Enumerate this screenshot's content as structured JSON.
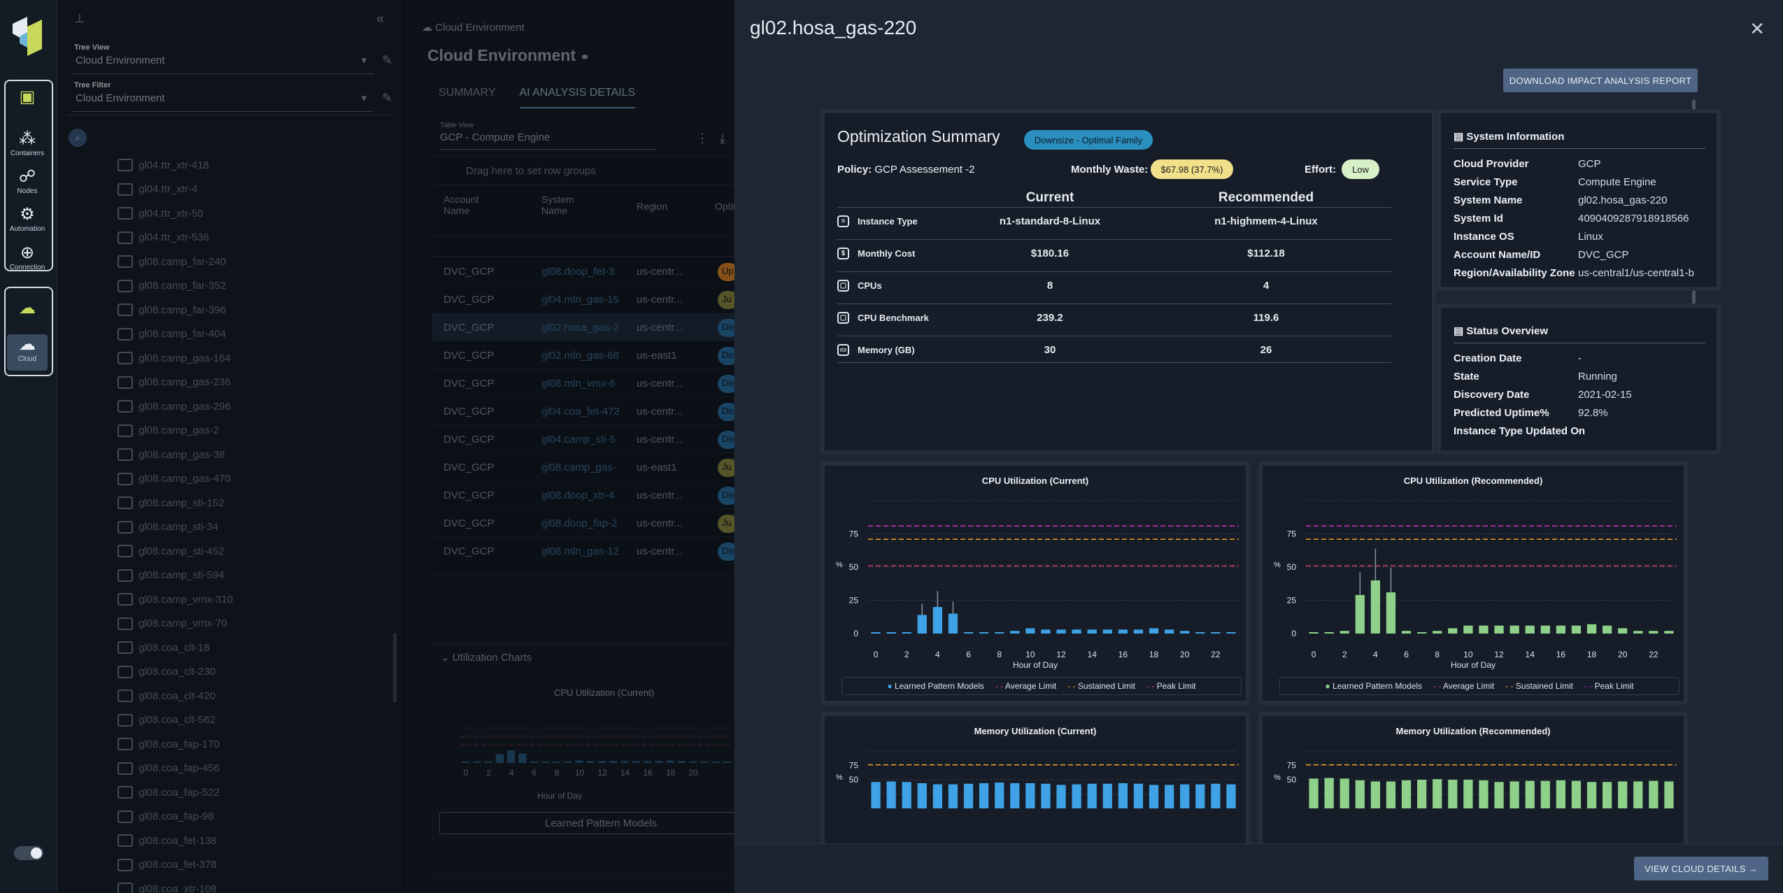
{
  "rail": {
    "items": [
      "Containers",
      "Nodes",
      "Automation",
      "Connection",
      "Cloud"
    ]
  },
  "tree": {
    "tree_view_label": "Tree View",
    "tree_view_value": "Cloud Environment",
    "tree_filter_label": "Tree Filter",
    "tree_filter_value": "Cloud Environment",
    "items": [
      "gl04.ttr_xtr-418",
      "gl04.ttr_xtr-4",
      "gl04.ttr_xtr-50",
      "gl04.ttr_xtr-536",
      "gl08.camp_far-240",
      "gl08.camp_far-352",
      "gl08.camp_far-396",
      "gl08.camp_far-404",
      "gl08.camp_gas-164",
      "gl08.camp_gas-236",
      "gl08.camp_gas-296",
      "gl08.camp_gas-2",
      "gl08.camp_gas-38",
      "gl08.camp_gas-470",
      "gl08.camp_sti-152",
      "gl08.camp_sti-34",
      "gl08.camp_sti-452",
      "gl08.camp_sti-594",
      "gl08.camp_vmx-310",
      "gl08.camp_vmx-70",
      "gl08.coa_clt-18",
      "gl08.coa_clt-230",
      "gl08.coa_clt-420",
      "gl08.coa_clt-562",
      "gl08.coa_fap-170",
      "gl08.coa_fap-456",
      "gl08.coa_fap-522",
      "gl08.coa_fap-98",
      "gl08.coa_fet-138",
      "gl08.coa_fet-378",
      "gl08.coa_xtr-108"
    ]
  },
  "mid": {
    "breadcrumb": "Cloud Environment",
    "title": "Cloud Environment",
    "tabs": [
      "SUMMARY",
      "AI ANALYSIS DETAILS"
    ],
    "table_view_label": "Table View",
    "table_view_value": "GCP - Compute Engine",
    "group_hint": "Drag here to set row groups",
    "columns": [
      "Account Name",
      "System Name",
      "Region",
      "Optin"
    ],
    "rows": [
      [
        "DVC_GCP",
        "gl08.doop_fet-3",
        "us-centr...",
        "Up"
      ],
      [
        "DVC_GCP",
        "gl04.mln_gas-15",
        "us-centr...",
        "Ju"
      ],
      [
        "DVC_GCP",
        "gl02.hosa_gas-2",
        "us-centr...",
        "Do"
      ],
      [
        "DVC_GCP",
        "gl02.mln_gas-66",
        "us-east1",
        "Do"
      ],
      [
        "DVC_GCP",
        "gl08.mln_vmx-6",
        "us-centr...",
        "Do"
      ],
      [
        "DVC_GCP",
        "gl04.coa_fet-472",
        "us-centr...",
        "Do"
      ],
      [
        "DVC_GCP",
        "gl04.camp_sti-5",
        "us-centr...",
        "Do"
      ],
      [
        "DVC_GCP",
        "gl08.camp_gas-",
        "us-east1",
        "Ju"
      ],
      [
        "DVC_GCP",
        "gl08.doop_xtr-4",
        "us-centr...",
        "Do"
      ],
      [
        "DVC_GCP",
        "gl08.doop_fap-2",
        "us-centr...",
        "Ju"
      ],
      [
        "DVC_GCP",
        "gl08.mln_gas-12",
        "us-centr...",
        "Do"
      ]
    ],
    "util_title": "Utilization Charts",
    "mini_chart_title": "CPU Utilization (Current)",
    "mini_xlabel": "Hour of Day",
    "mini_legend": "Learned Pattern Models"
  },
  "panel": {
    "title": "gl02.hosa_gas-220",
    "download_btn": "DOWNLOAD IMPACT ANALYSIS REPORT",
    "view_btn": "VIEW CLOUD DETAILS",
    "summary": {
      "title": "Optimization Summary",
      "badge": "Downsize - Optimal Family",
      "policy_label": "Policy:",
      "policy": "GCP Assessement -2",
      "waste_label": "Monthly Waste:",
      "waste": "$67.98 (37.7%)",
      "effort_label": "Effort:",
      "effort": "Low",
      "col_current": "Current",
      "col_recommended": "Recommended",
      "rows": [
        {
          "label": "Instance Type",
          "current": "n1-standard-8-Linux",
          "recommended": "n1-highmem-4-Linux"
        },
        {
          "label": "Monthly Cost",
          "current": "$180.16",
          "recommended": "$112.18"
        },
        {
          "label": "CPUs",
          "current": "8",
          "recommended": "4"
        },
        {
          "label": "CPU Benchmark",
          "current": "239.2",
          "recommended": "119.6"
        },
        {
          "label": "Memory (GB)",
          "current": "30",
          "recommended": "26"
        }
      ]
    },
    "system": {
      "title": "System Information",
      "rows": [
        [
          "Cloud Provider",
          "GCP"
        ],
        [
          "Service Type",
          "Compute Engine"
        ],
        [
          "System Name",
          "gl02.hosa_gas-220"
        ],
        [
          "System Id",
          "4090409287918918566"
        ],
        [
          "Instance OS",
          "Linux"
        ],
        [
          "Account Name/ID",
          "DVC_GCP"
        ],
        [
          "Region/Availability Zone",
          "us-central1/us-central1-b"
        ]
      ]
    },
    "status": {
      "title": "Status Overview",
      "rows": [
        [
          "Creation Date",
          "-"
        ],
        [
          "State",
          "Running"
        ],
        [
          "Discovery Date",
          "2021-02-15"
        ],
        [
          "Predicted Uptime%",
          "92.8%"
        ],
        [
          "Instance Type Updated On",
          "-"
        ]
      ]
    },
    "legend": {
      "models": "Learned Pattern Models",
      "avg": "Average Limit",
      "sustained": "Sustained Limit",
      "peak": "Peak Limit"
    }
  },
  "colors": {
    "accent": "#4e6585",
    "cpu_current": "#3fa2e6",
    "cpu_recommended": "#8fd18a",
    "avg_limit": "#e23b6b",
    "sustained_limit": "#f0a21a",
    "peak_limit": "#c62fc8"
  },
  "chart_data": [
    {
      "type": "bar",
      "title": "CPU Utilization (Current)",
      "xlabel": "Hour of Day",
      "ylabel": "%",
      "ylim": [
        0,
        100
      ],
      "x": [
        0,
        1,
        2,
        3,
        4,
        5,
        6,
        7,
        8,
        9,
        10,
        11,
        12,
        13,
        14,
        15,
        16,
        17,
        18,
        19,
        20,
        21,
        22,
        23
      ],
      "values": [
        0,
        0,
        1,
        14,
        20,
        15,
        1,
        0,
        1,
        2,
        4,
        3,
        3,
        3,
        3,
        3,
        3,
        3,
        4,
        3,
        2,
        1,
        1,
        1
      ],
      "limits": {
        "average": 51,
        "sustained": 71,
        "peak": 81
      }
    },
    {
      "type": "bar",
      "title": "CPU Utilization (Recommended)",
      "xlabel": "Hour of Day",
      "ylabel": "%",
      "ylim": [
        0,
        100
      ],
      "x": [
        0,
        1,
        2,
        3,
        4,
        5,
        6,
        7,
        8,
        9,
        10,
        11,
        12,
        13,
        14,
        15,
        16,
        17,
        18,
        19,
        20,
        21,
        22,
        23
      ],
      "values": [
        1,
        1,
        2,
        29,
        40,
        31,
        2,
        1,
        2,
        4,
        6,
        6,
        6,
        6,
        6,
        6,
        6,
        6,
        7,
        6,
        4,
        2,
        2,
        2
      ],
      "limits": {
        "average": 51,
        "sustained": 71,
        "peak": 81
      }
    },
    {
      "type": "bar",
      "title": "Memory Utilization (Current)",
      "ylabel": "%",
      "ylim": [
        0,
        100
      ],
      "x": [
        0,
        1,
        2,
        3,
        4,
        5,
        6,
        7,
        8,
        9,
        10,
        11,
        12,
        13,
        14,
        15,
        16,
        17,
        18,
        19,
        20,
        21,
        22,
        23
      ],
      "values": [
        46,
        47,
        46,
        44,
        42,
        42,
        43,
        44,
        45,
        44,
        44,
        43,
        41,
        42,
        43,
        43,
        44,
        43,
        41,
        41,
        42,
        42,
        43,
        42
      ],
      "limits": {
        "sustained": 76
      }
    },
    {
      "type": "bar",
      "title": "Memory Utilization (Recommended)",
      "ylabel": "%",
      "ylim": [
        0,
        100
      ],
      "x": [
        0,
        1,
        2,
        3,
        4,
        5,
        6,
        7,
        8,
        9,
        10,
        11,
        12,
        13,
        14,
        15,
        16,
        17,
        18,
        19,
        20,
        21,
        22,
        23
      ],
      "values": [
        52,
        53,
        52,
        49,
        47,
        47,
        49,
        50,
        51,
        50,
        50,
        49,
        46,
        47,
        48,
        48,
        49,
        48,
        46,
        46,
        47,
        47,
        48,
        47
      ],
      "limits": {
        "sustained": 76
      }
    }
  ]
}
